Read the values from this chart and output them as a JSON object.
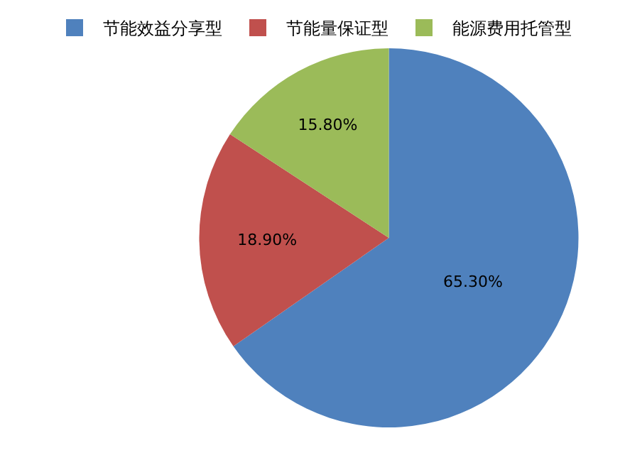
{
  "chart_data": {
    "type": "pie",
    "categories": [
      "节能效益分享型",
      "节能量保证型",
      "能源费用托管型"
    ],
    "values": [
      65.3,
      18.9,
      15.8
    ],
    "colors": [
      "#4f81bd",
      "#c0504d",
      "#9bbb59"
    ],
    "value_labels": [
      "65.30%",
      "18.90%",
      "15.80%"
    ],
    "legend": "top"
  }
}
